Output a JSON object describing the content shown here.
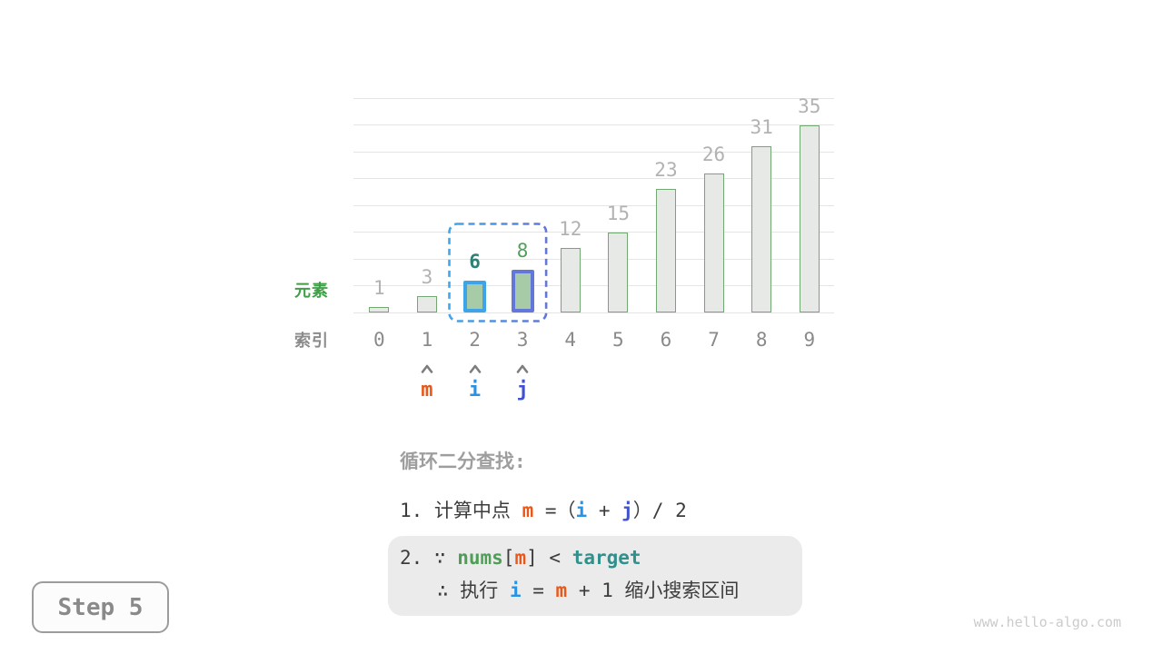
{
  "chart_data": {
    "type": "bar",
    "categories": [
      "0",
      "1",
      "2",
      "3",
      "4",
      "5",
      "6",
      "7",
      "8",
      "9"
    ],
    "values": [
      1,
      3,
      6,
      8,
      12,
      15,
      23,
      26,
      31,
      35
    ],
    "title": "",
    "xlabel": "索引",
    "ylabel": "元素",
    "ylim": [
      0,
      40
    ],
    "grid_step": 5,
    "grid": true,
    "legend": "none",
    "bar_fill": "#e7e9e6",
    "bar_border": "#72a972",
    "value_label_color": "#b2b2b2",
    "index_label_color": "#8a8a8a",
    "highlights": [
      {
        "index": 2,
        "fill": "#a6cba6",
        "border": "#3fa3e8",
        "value_color": "#2c8076",
        "value_bold": true
      },
      {
        "index": 3,
        "fill": "#a6cba6",
        "border": "#6277d8",
        "value_color": "#539e5b",
        "value_bold": false
      }
    ],
    "selection_box": {
      "from_index": 2,
      "to_index": 3,
      "color_start": "#41a6ea",
      "color_end": "#6277d8"
    }
  },
  "pointers": {
    "caret_color": "#7d7d7d",
    "items": [
      {
        "label": "m",
        "index": 1,
        "color": "#e8581a"
      },
      {
        "label": "i",
        "index": 2,
        "color": "#2793e6"
      },
      {
        "label": "j",
        "index": 3,
        "color": "#4053cf"
      }
    ]
  },
  "colors": {
    "plain": "#3c3c3c",
    "m": "#e8581a",
    "i": "#2793e6",
    "j": "#4053cf",
    "nums": "#4f9e55",
    "target": "#2f908c"
  },
  "instructions": {
    "title": "循环二分查找:",
    "line1": [
      {
        "t": "1. 计算中点 ",
        "c": "plain"
      },
      {
        "t": "m",
        "c": "m",
        "b": true
      },
      {
        "t": " =（",
        "c": "plain"
      },
      {
        "t": "i",
        "c": "i",
        "b": true
      },
      {
        "t": " + ",
        "c": "plain"
      },
      {
        "t": "j",
        "c": "j",
        "b": true
      },
      {
        "t": "）/ 2",
        "c": "plain"
      }
    ],
    "line2a": [
      {
        "t": "2. ∵ ",
        "c": "plain"
      },
      {
        "t": "nums",
        "c": "nums",
        "b": true
      },
      {
        "t": "[",
        "c": "plain"
      },
      {
        "t": "m",
        "c": "m",
        "b": true
      },
      {
        "t": "] < ",
        "c": "plain"
      },
      {
        "t": "target",
        "c": "target",
        "b": true
      }
    ],
    "line2b": [
      {
        "t": "∴ 执行 ",
        "c": "plain"
      },
      {
        "t": "i",
        "c": "i",
        "b": true
      },
      {
        "t": " = ",
        "c": "plain"
      },
      {
        "t": "m",
        "c": "m",
        "b": true
      },
      {
        "t": " + 1 缩小搜索区间",
        "c": "plain"
      }
    ]
  },
  "step_badge": {
    "label": "Step 5"
  },
  "watermark": "www.hello-algo.com"
}
